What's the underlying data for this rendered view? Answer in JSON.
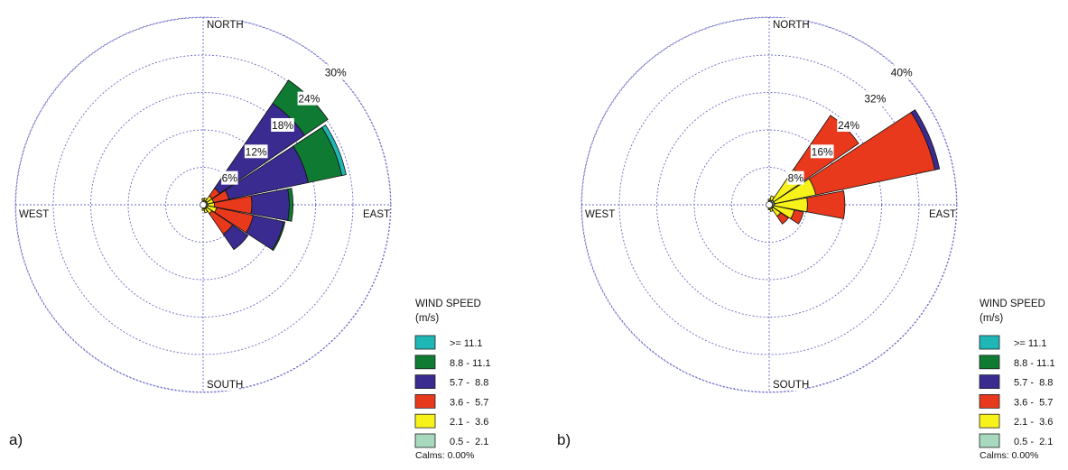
{
  "chart_data": [
    {
      "panel": "a)",
      "type": "wind-rose",
      "compass": {
        "north": "NORTH",
        "south": "SOUTH",
        "east": "EAST",
        "west": "WEST"
      },
      "rings": [
        6,
        12,
        18,
        24,
        30
      ],
      "ring_labels": [
        "6%",
        "12%",
        "18%",
        "24%",
        "30%"
      ],
      "legend_title": "WIND SPEED",
      "legend_unit": "(m/s)",
      "calms": "Calms: 0.00%",
      "bins": [
        {
          "label": ">= 11.1",
          "color": "#1fb6b6"
        },
        {
          "label": "8.8 - 11.1",
          "color": "#0f7a32"
        },
        {
          "label": "5.7 -  8.8",
          "color": "#3a2b91"
        },
        {
          "label": "3.6 -  5.7",
          "color": "#e8391c"
        },
        {
          "label": "2.1 -  3.6",
          "color": "#f6f21a"
        },
        {
          "label": "0.5 -  2.1",
          "color": "#a8d9be"
        }
      ],
      "directions_deg": [
        0,
        22.5,
        45,
        67.5,
        90,
        112.5,
        135,
        157.5,
        180,
        202.5,
        225,
        247.5,
        270,
        292.5,
        315,
        337.5
      ],
      "frequencies_percent": [
        [
          0,
          0,
          0,
          0,
          0.3,
          0.2
        ],
        [
          0,
          0,
          0,
          0,
          0.4,
          0.2
        ],
        [
          0,
          4.5,
          16.5,
          1.5,
          1,
          0.2
        ],
        [
          0.7,
          5.5,
          13,
          2.5,
          1,
          0.2
        ],
        [
          0,
          0.6,
          6,
          6,
          1,
          0.3
        ],
        [
          0,
          0.2,
          5,
          6,
          1.5,
          0.2
        ],
        [
          0,
          0,
          3,
          4,
          1,
          0.2
        ],
        [
          0,
          0,
          0,
          0,
          0.6,
          0.2
        ],
        [
          0,
          0,
          0,
          0,
          0.3,
          0.1
        ],
        [
          0,
          0,
          0,
          0,
          0,
          0
        ],
        [
          0,
          0,
          0,
          0,
          0,
          0
        ],
        [
          0,
          0,
          0,
          0,
          0,
          0
        ],
        [
          0,
          0,
          0,
          0,
          0,
          0
        ],
        [
          0,
          0,
          0,
          0,
          0,
          0
        ],
        [
          0,
          0,
          0,
          0,
          0,
          0
        ],
        [
          0,
          0,
          0,
          0,
          0,
          0
        ]
      ]
    },
    {
      "panel": "b)",
      "type": "wind-rose",
      "compass": {
        "north": "NORTH",
        "south": "SOUTH",
        "east": "EAST",
        "west": "WEST"
      },
      "rings": [
        8,
        16,
        24,
        32,
        40
      ],
      "ring_labels": [
        "8%",
        "16%",
        "24%",
        "32%",
        "40%"
      ],
      "legend_title": "WIND SPEED",
      "legend_unit": "(m/s)",
      "calms": "Calms: 0.00%",
      "bins": [
        {
          "label": ">= 11.1",
          "color": "#1fb6b6"
        },
        {
          "label": "8.8 - 11.1",
          "color": "#0f7a32"
        },
        {
          "label": "5.7 -  8.8",
          "color": "#3a2b91"
        },
        {
          "label": "3.6 -  5.7",
          "color": "#e8391c"
        },
        {
          "label": "2.1 -  3.6",
          "color": "#f6f21a"
        },
        {
          "label": "0.5 -  2.1",
          "color": "#a8d9be"
        }
      ],
      "directions_deg": [
        0,
        22.5,
        45,
        67.5,
        90,
        112.5,
        135,
        157.5,
        180,
        202.5,
        225,
        247.5,
        270,
        292.5,
        315,
        337.5
      ],
      "frequencies_percent": [
        [
          0,
          0,
          0,
          0,
          0.3,
          0.2
        ],
        [
          0,
          0,
          0,
          0,
          1,
          0.3
        ],
        [
          0,
          0,
          0,
          14,
          8,
          0.5
        ],
        [
          0,
          0,
          1,
          26,
          9,
          0.5
        ],
        [
          0,
          0,
          0,
          8,
          7,
          0.5
        ],
        [
          0,
          0,
          0,
          2,
          4.5,
          0.3
        ],
        [
          0,
          0,
          0,
          2,
          2,
          0.3
        ],
        [
          0,
          0,
          0,
          0,
          0.6,
          0.2
        ],
        [
          0,
          0,
          0,
          0,
          0.3,
          0.1
        ],
        [
          0,
          0,
          0,
          0,
          0,
          0
        ],
        [
          0,
          0,
          0,
          0,
          0,
          0
        ],
        [
          0,
          0,
          0,
          0,
          0,
          0
        ],
        [
          0,
          0,
          0,
          0,
          0,
          0
        ],
        [
          0,
          0,
          0,
          0,
          0,
          0
        ],
        [
          0,
          0,
          0,
          0,
          0,
          0
        ],
        [
          0,
          0,
          0,
          0,
          0,
          0
        ]
      ]
    }
  ]
}
